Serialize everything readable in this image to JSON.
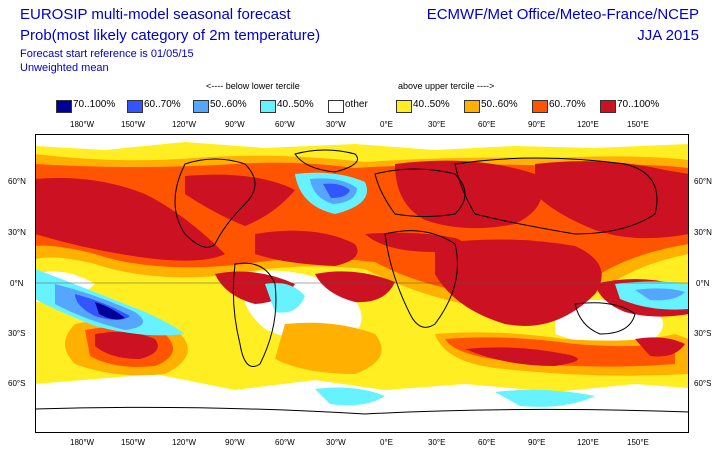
{
  "header": {
    "title": "EUROSIP multi-model seasonal forecast",
    "subtitle": "Prob(most likely category of 2m temperature)",
    "forecast_ref": "Forecast start reference is 01/05/15",
    "weighting": "Unweighted mean",
    "centres": "ECMWF/Met Office/Meteo-France/NCEP",
    "season": "JJA 2015"
  },
  "legend": {
    "below_label": "<---- below lower tercile",
    "above_label": "above upper tercile ---->",
    "items": [
      {
        "label": "70..100%",
        "color": "#000099"
      },
      {
        "label": "60..70%",
        "color": "#3355ff"
      },
      {
        "label": "50..60%",
        "color": "#55a6ff"
      },
      {
        "label": "40..50%",
        "color": "#66f3ff"
      },
      {
        "label": "other",
        "color": "#ffffff"
      },
      {
        "label": "40..50%",
        "color": "#ffee22"
      },
      {
        "label": "50..60%",
        "color": "#ffb000"
      },
      {
        "label": "60..70%",
        "color": "#ff5500"
      },
      {
        "label": "70..100%",
        "color": "#cc1122"
      }
    ]
  },
  "axes": {
    "lon_labels": [
      "180°W",
      "150°W",
      "120°W",
      "90°W",
      "60°W",
      "30°W",
      "0°E",
      "30°E",
      "60°E",
      "90°E",
      "120°E",
      "150°E"
    ],
    "lat_labels": [
      "60°N",
      "30°N",
      "0°N",
      "30°S",
      "60°S"
    ]
  }
}
